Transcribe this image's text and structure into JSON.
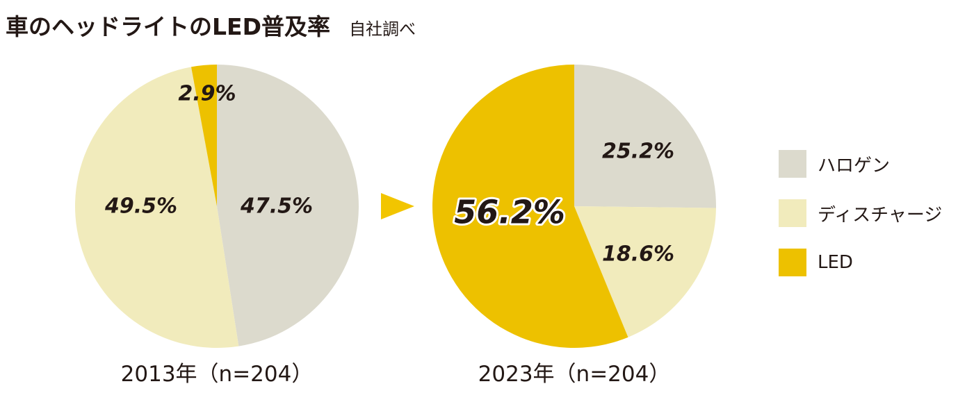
{
  "header": {
    "title": "車のヘッドライトのLED普及率",
    "subtitle": "自社調べ"
  },
  "colors": {
    "halogen": "#dcdacd",
    "discharge": "#f1ebbc",
    "led": "#edc100",
    "arrow": "#f2c500"
  },
  "chart_data": [
    {
      "type": "pie",
      "title": "2013年（n=204）",
      "slices": [
        {
          "name": "ハロゲン",
          "value": 47.5,
          "label": "47.5%"
        },
        {
          "name": "ディスチャージ",
          "value": 49.5,
          "label": "49.5%"
        },
        {
          "name": "LED",
          "value": 2.9,
          "label": "2.9%"
        }
      ]
    },
    {
      "type": "pie",
      "title": "2023年（n=204）",
      "slices": [
        {
          "name": "ハロゲン",
          "value": 25.2,
          "label": "25.2%"
        },
        {
          "name": "ディスチャージ",
          "value": 18.6,
          "label": "18.6%"
        },
        {
          "name": "LED",
          "value": 56.2,
          "label": "56.2%"
        }
      ]
    }
  ],
  "legend": {
    "items": [
      {
        "name": "ハロゲン",
        "color_key": "halogen"
      },
      {
        "name": "ディスチャージ",
        "color_key": "discharge"
      },
      {
        "name": "LED",
        "color_key": "led"
      }
    ]
  }
}
